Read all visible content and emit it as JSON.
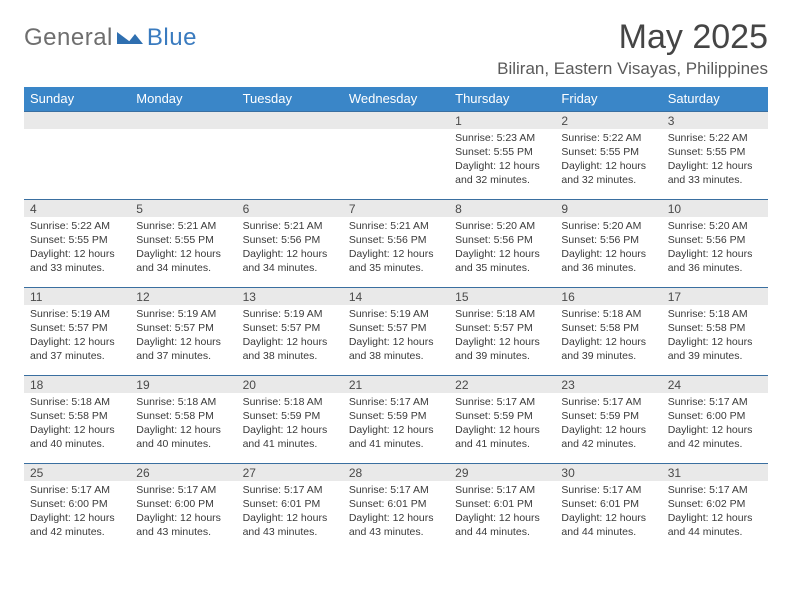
{
  "brand": {
    "general": "General",
    "blue": "Blue"
  },
  "title": "May 2025",
  "location": "Biliran, Eastern Visayas, Philippines",
  "colors": {
    "header_bg": "#3a86c8",
    "header_text": "#ffffff",
    "daynum_bg": "#e9e9e9",
    "border": "#3a6fa0",
    "logo_gray": "#6e6e6e",
    "logo_blue": "#3a7bbf",
    "text": "#333333"
  },
  "dow": [
    "Sunday",
    "Monday",
    "Tuesday",
    "Wednesday",
    "Thursday",
    "Friday",
    "Saturday"
  ],
  "weeks": [
    {
      "nums": [
        "",
        "",
        "",
        "",
        "1",
        "2",
        "3"
      ],
      "cells": [
        null,
        null,
        null,
        null,
        {
          "sr": "5:23 AM",
          "ss": "5:55 PM",
          "dl": "12 hours and 32 minutes."
        },
        {
          "sr": "5:22 AM",
          "ss": "5:55 PM",
          "dl": "12 hours and 32 minutes."
        },
        {
          "sr": "5:22 AM",
          "ss": "5:55 PM",
          "dl": "12 hours and 33 minutes."
        }
      ]
    },
    {
      "nums": [
        "4",
        "5",
        "6",
        "7",
        "8",
        "9",
        "10"
      ],
      "cells": [
        {
          "sr": "5:22 AM",
          "ss": "5:55 PM",
          "dl": "12 hours and 33 minutes."
        },
        {
          "sr": "5:21 AM",
          "ss": "5:55 PM",
          "dl": "12 hours and 34 minutes."
        },
        {
          "sr": "5:21 AM",
          "ss": "5:56 PM",
          "dl": "12 hours and 34 minutes."
        },
        {
          "sr": "5:21 AM",
          "ss": "5:56 PM",
          "dl": "12 hours and 35 minutes."
        },
        {
          "sr": "5:20 AM",
          "ss": "5:56 PM",
          "dl": "12 hours and 35 minutes."
        },
        {
          "sr": "5:20 AM",
          "ss": "5:56 PM",
          "dl": "12 hours and 36 minutes."
        },
        {
          "sr": "5:20 AM",
          "ss": "5:56 PM",
          "dl": "12 hours and 36 minutes."
        }
      ]
    },
    {
      "nums": [
        "11",
        "12",
        "13",
        "14",
        "15",
        "16",
        "17"
      ],
      "cells": [
        {
          "sr": "5:19 AM",
          "ss": "5:57 PM",
          "dl": "12 hours and 37 minutes."
        },
        {
          "sr": "5:19 AM",
          "ss": "5:57 PM",
          "dl": "12 hours and 37 minutes."
        },
        {
          "sr": "5:19 AM",
          "ss": "5:57 PM",
          "dl": "12 hours and 38 minutes."
        },
        {
          "sr": "5:19 AM",
          "ss": "5:57 PM",
          "dl": "12 hours and 38 minutes."
        },
        {
          "sr": "5:18 AM",
          "ss": "5:57 PM",
          "dl": "12 hours and 39 minutes."
        },
        {
          "sr": "5:18 AM",
          "ss": "5:58 PM",
          "dl": "12 hours and 39 minutes."
        },
        {
          "sr": "5:18 AM",
          "ss": "5:58 PM",
          "dl": "12 hours and 39 minutes."
        }
      ]
    },
    {
      "nums": [
        "18",
        "19",
        "20",
        "21",
        "22",
        "23",
        "24"
      ],
      "cells": [
        {
          "sr": "5:18 AM",
          "ss": "5:58 PM",
          "dl": "12 hours and 40 minutes."
        },
        {
          "sr": "5:18 AM",
          "ss": "5:58 PM",
          "dl": "12 hours and 40 minutes."
        },
        {
          "sr": "5:18 AM",
          "ss": "5:59 PM",
          "dl": "12 hours and 41 minutes."
        },
        {
          "sr": "5:17 AM",
          "ss": "5:59 PM",
          "dl": "12 hours and 41 minutes."
        },
        {
          "sr": "5:17 AM",
          "ss": "5:59 PM",
          "dl": "12 hours and 41 minutes."
        },
        {
          "sr": "5:17 AM",
          "ss": "5:59 PM",
          "dl": "12 hours and 42 minutes."
        },
        {
          "sr": "5:17 AM",
          "ss": "6:00 PM",
          "dl": "12 hours and 42 minutes."
        }
      ]
    },
    {
      "nums": [
        "25",
        "26",
        "27",
        "28",
        "29",
        "30",
        "31"
      ],
      "cells": [
        {
          "sr": "5:17 AM",
          "ss": "6:00 PM",
          "dl": "12 hours and 42 minutes."
        },
        {
          "sr": "5:17 AM",
          "ss": "6:00 PM",
          "dl": "12 hours and 43 minutes."
        },
        {
          "sr": "5:17 AM",
          "ss": "6:01 PM",
          "dl": "12 hours and 43 minutes."
        },
        {
          "sr": "5:17 AM",
          "ss": "6:01 PM",
          "dl": "12 hours and 43 minutes."
        },
        {
          "sr": "5:17 AM",
          "ss": "6:01 PM",
          "dl": "12 hours and 44 minutes."
        },
        {
          "sr": "5:17 AM",
          "ss": "6:01 PM",
          "dl": "12 hours and 44 minutes."
        },
        {
          "sr": "5:17 AM",
          "ss": "6:02 PM",
          "dl": "12 hours and 44 minutes."
        }
      ]
    }
  ],
  "labels": {
    "sunrise": "Sunrise:",
    "sunset": "Sunset:",
    "daylight": "Daylight:"
  }
}
